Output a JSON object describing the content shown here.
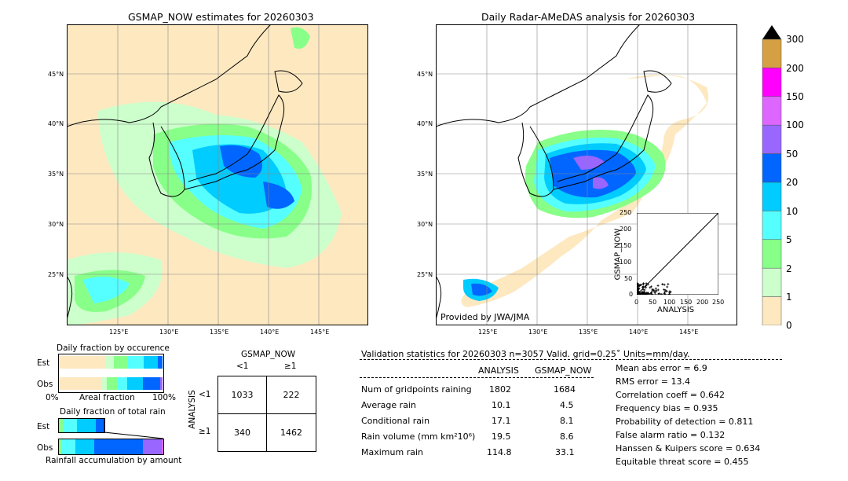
{
  "left_map": {
    "title": "GSMAP_NOW estimates for 20260303",
    "lat_labels": [
      "45°N",
      "40°N",
      "35°N",
      "30°N",
      "25°N"
    ],
    "lon_labels": [
      "125°E",
      "130°E",
      "135°E",
      "140°E",
      "145°E"
    ]
  },
  "right_map": {
    "title": "Daily Radar-AMeDAS analysis for 20260303",
    "lat_labels": [
      "45°N",
      "40°N",
      "35°N",
      "30°N",
      "25°N"
    ],
    "lon_labels": [
      "125°E",
      "130°E",
      "135°E",
      "140°E",
      "145°E"
    ],
    "credit": "Provided by JWA/JMA"
  },
  "colorbar": {
    "ticks": [
      "300",
      "200",
      "150",
      "100",
      "50",
      "20",
      "10",
      "5",
      "2",
      "1",
      "0"
    ],
    "colors": [
      "#d4a043",
      "#ff00ff",
      "#dd66ff",
      "#9966ff",
      "#0066ff",
      "#00ccff",
      "#55ffff",
      "#88ff88",
      "#ccffcc",
      "#fde8c0"
    ]
  },
  "scatter": {
    "xlabel": "ANALYSIS",
    "ylabel": "GSMAP_NOW",
    "ticks": [
      "0",
      "50",
      "100",
      "150",
      "200",
      "250"
    ]
  },
  "fraction_occurrence": {
    "title": "Daily fraction by occurence",
    "rows": [
      "Est",
      "Obs"
    ],
    "axis_left": "0%",
    "axis_mid": "Areal fraction",
    "axis_right": "100%"
  },
  "fraction_total": {
    "title": "Daily fraction of total rain",
    "rows": [
      "Est",
      "Obs"
    ],
    "caption": "Rainfall accumulation by amount"
  },
  "contingency": {
    "title": "GSMAP_NOW",
    "col_labels": [
      "<1",
      "≥1"
    ],
    "row_labels": [
      "<1",
      "≥1"
    ],
    "ylabel": "ANALYSIS",
    "cells": [
      [
        "1033",
        "222"
      ],
      [
        "340",
        "1462"
      ]
    ]
  },
  "validation": {
    "header": "Validation statistics for 20260303  n=3057 Valid. grid=0.25˚ Units=mm/day.",
    "col_analysis": "ANALYSIS",
    "col_gsmap": "GSMAP_NOW",
    "rows": [
      {
        "label": "Num of gridpoints raining",
        "analysis": "1802",
        "gsmap": "1684"
      },
      {
        "label": "Average rain",
        "analysis": "10.1",
        "gsmap": "4.5"
      },
      {
        "label": "Conditional rain",
        "analysis": "17.1",
        "gsmap": "8.1"
      },
      {
        "label": "Rain volume (mm km²10⁶)",
        "analysis": "19.5",
        "gsmap": "8.6"
      },
      {
        "label": "Maximum rain",
        "analysis": "114.8",
        "gsmap": "33.1"
      }
    ],
    "scores": [
      "Mean abs error =    6.9",
      "RMS error =   13.4",
      "Correlation coeff =  0.642",
      "Frequency bias =  0.935",
      "Probability of detection =  0.811",
      "False alarm ratio =  0.132",
      "Hanssen & Kuipers score =  0.634",
      "Equitable threat score =  0.455"
    ]
  },
  "chart_data": [
    {
      "type": "heatmap",
      "title": "GSMAP_NOW estimates for 20260303",
      "x_ticks": [
        "125°E",
        "130°E",
        "135°E",
        "140°E",
        "145°E"
      ],
      "y_ticks": [
        "45°N",
        "40°N",
        "35°N",
        "30°N",
        "25°N"
      ]
    },
    {
      "type": "heatmap",
      "title": "Daily Radar-AMeDAS analysis for 20260303",
      "x_ticks": [
        "125°E",
        "130°E",
        "135°E",
        "140°E",
        "145°E"
      ],
      "y_ticks": [
        "45°N",
        "40°N",
        "35°N",
        "30°N",
        "25°N"
      ]
    },
    {
      "type": "scatter",
      "xlabel": "ANALYSIS",
      "ylabel": "GSMAP_NOW",
      "xlim": [
        0,
        250
      ],
      "ylim": [
        0,
        250
      ]
    },
    {
      "type": "table",
      "title": "GSMAP_NOW",
      "columns": [
        "<1",
        "≥1"
      ],
      "rows": [
        "<1",
        "≥1"
      ],
      "values": [
        [
          1033,
          222
        ],
        [
          340,
          1462
        ]
      ]
    }
  ]
}
